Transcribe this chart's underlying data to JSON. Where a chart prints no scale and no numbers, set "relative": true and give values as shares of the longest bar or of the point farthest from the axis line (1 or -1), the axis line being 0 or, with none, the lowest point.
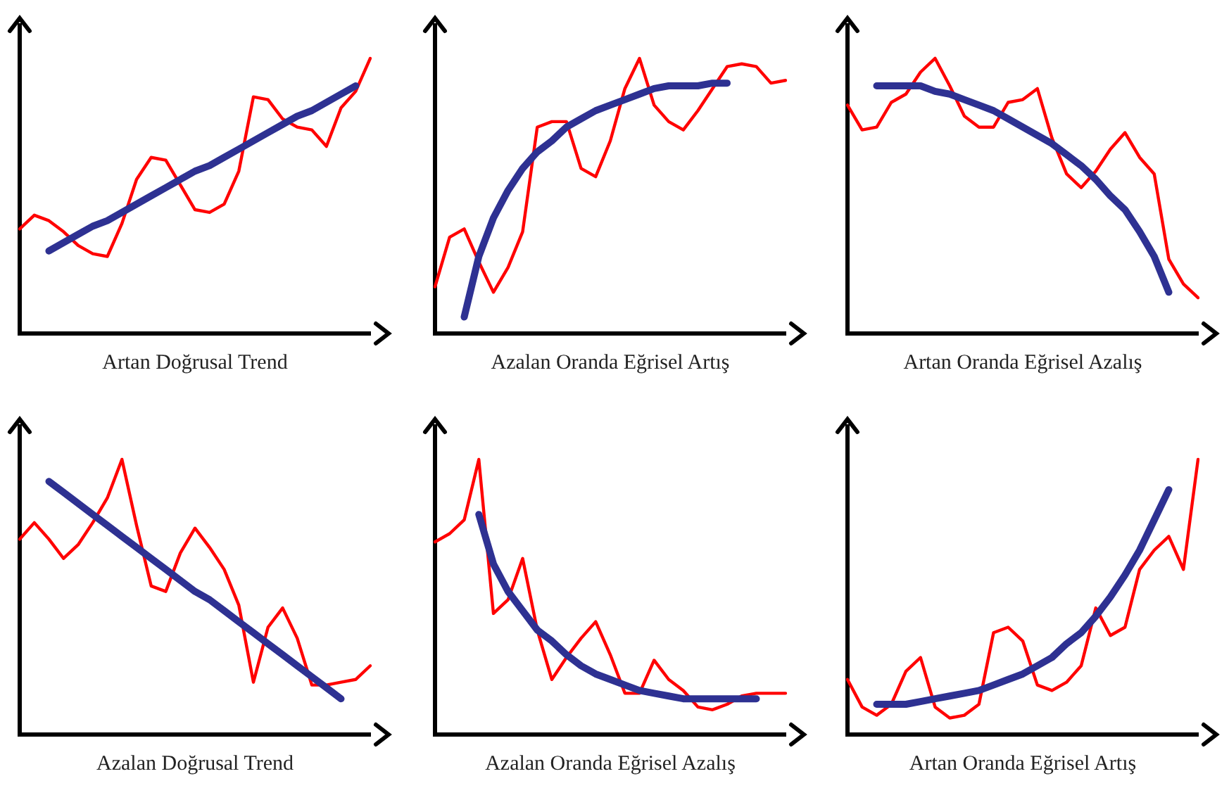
{
  "chart_data": [
    {
      "type": "line",
      "xlabel": "Artan Doğrusal Trend",
      "relative": true,
      "tick_labels": false,
      "grid": false,
      "marker": "none",
      "categories": [
        null,
        null,
        null,
        null,
        null,
        null,
        null,
        null,
        null,
        null,
        null,
        null,
        null,
        null,
        null,
        null,
        null,
        null,
        null,
        null,
        null,
        null,
        null,
        null,
        null
      ],
      "series": [
        {
          "color": "#ff0000",
          "values": [
            0.38,
            0.43,
            0.41,
            0.37,
            0.32,
            0.29,
            0.28,
            0.4,
            0.56,
            0.64,
            0.63,
            0.54,
            0.45,
            0.44,
            0.47,
            0.59,
            0.86,
            0.85,
            0.78,
            0.75,
            0.74,
            0.68,
            0.82,
            0.88,
            1.0
          ]
        },
        {
          "color": "#2e3192",
          "values": [
            null,
            null,
            0.3,
            0.33,
            0.36,
            0.39,
            0.41,
            0.44,
            0.47,
            0.5,
            0.53,
            0.56,
            0.59,
            0.61,
            0.64,
            0.67,
            0.7,
            0.73,
            0.76,
            0.79,
            0.81,
            0.84,
            0.87,
            0.9,
            null
          ]
        }
      ]
    },
    {
      "type": "line",
      "xlabel": "Azalan Oranda Eğrisel Artış",
      "relative": true,
      "tick_labels": false,
      "grid": false,
      "marker": "none",
      "categories": [
        null,
        null,
        null,
        null,
        null,
        null,
        null,
        null,
        null,
        null,
        null,
        null,
        null,
        null,
        null,
        null,
        null,
        null,
        null,
        null,
        null,
        null,
        null,
        null,
        null
      ],
      "series": [
        {
          "color": "#ff0000",
          "values": [
            0.17,
            0.35,
            0.38,
            0.26,
            0.15,
            0.24,
            0.37,
            0.75,
            0.77,
            0.77,
            0.6,
            0.57,
            0.7,
            0.89,
            1.0,
            0.83,
            0.77,
            0.74,
            0.81,
            0.89,
            0.97,
            0.98,
            0.97,
            0.91,
            0.92
          ]
        },
        {
          "color": "#2e3192",
          "values": [
            null,
            null,
            0.06,
            0.28,
            0.42,
            0.52,
            0.6,
            0.66,
            0.7,
            0.75,
            0.78,
            0.81,
            0.83,
            0.85,
            0.87,
            0.89,
            0.9,
            0.9,
            0.9,
            0.91,
            0.91,
            null,
            null,
            null,
            null
          ]
        }
      ]
    },
    {
      "type": "line",
      "xlabel": "Artan Oranda Eğrisel Azalış",
      "relative": true,
      "tick_labels": false,
      "grid": false,
      "marker": "none",
      "categories": [
        null,
        null,
        null,
        null,
        null,
        null,
        null,
        null,
        null,
        null,
        null,
        null,
        null,
        null,
        null,
        null,
        null,
        null,
        null,
        null,
        null,
        null,
        null,
        null,
        null
      ],
      "series": [
        {
          "color": "#ff0000",
          "values": [
            0.83,
            0.74,
            0.75,
            0.84,
            0.87,
            0.95,
            1.0,
            0.9,
            0.79,
            0.75,
            0.75,
            0.84,
            0.85,
            0.89,
            0.71,
            0.58,
            0.53,
            0.59,
            0.67,
            0.73,
            0.64,
            0.58,
            0.27,
            0.18,
            0.13
          ]
        },
        {
          "color": "#2e3192",
          "values": [
            null,
            null,
            0.9,
            0.9,
            0.9,
            0.9,
            0.88,
            0.87,
            0.85,
            0.83,
            0.81,
            0.78,
            0.75,
            0.72,
            0.69,
            0.65,
            0.61,
            0.56,
            0.5,
            0.45,
            0.37,
            0.28,
            0.15,
            null,
            null
          ]
        }
      ]
    },
    {
      "type": "line",
      "xlabel": "Azalan Doğrusal Trend",
      "relative": true,
      "tick_labels": false,
      "grid": false,
      "marker": "none",
      "categories": [
        null,
        null,
        null,
        null,
        null,
        null,
        null,
        null,
        null,
        null,
        null,
        null,
        null,
        null,
        null,
        null,
        null,
        null,
        null,
        null,
        null,
        null,
        null,
        null,
        null
      ],
      "series": [
        {
          "color": "#ff0000",
          "values": [
            0.71,
            0.77,
            0.71,
            0.64,
            0.69,
            0.77,
            0.86,
            1.0,
            0.76,
            0.54,
            0.52,
            0.66,
            0.75,
            0.68,
            0.6,
            0.47,
            0.19,
            0.39,
            0.46,
            0.35,
            0.18,
            0.18,
            0.19,
            0.2,
            0.25
          ]
        },
        {
          "color": "#2e3192",
          "values": [
            null,
            null,
            0.92,
            0.88,
            0.84,
            0.8,
            0.76,
            0.72,
            0.68,
            0.64,
            0.6,
            0.56,
            0.52,
            0.49,
            0.45,
            0.41,
            0.37,
            0.33,
            0.29,
            0.25,
            0.21,
            0.17,
            0.13,
            null,
            null
          ]
        }
      ]
    },
    {
      "type": "line",
      "xlabel": "Azalan Oranda Eğrisel Azalış",
      "relative": true,
      "tick_labels": false,
      "grid": false,
      "marker": "none",
      "categories": [
        null,
        null,
        null,
        null,
        null,
        null,
        null,
        null,
        null,
        null,
        null,
        null,
        null,
        null,
        null,
        null,
        null,
        null,
        null,
        null,
        null,
        null,
        null,
        null,
        null
      ],
      "series": [
        {
          "color": "#ff0000",
          "values": [
            0.7,
            0.73,
            0.78,
            1.0,
            0.44,
            0.49,
            0.64,
            0.38,
            0.2,
            0.28,
            0.35,
            0.41,
            0.29,
            0.15,
            0.15,
            0.27,
            0.2,
            0.16,
            0.1,
            0.09,
            0.11,
            0.14,
            0.15,
            0.15,
            0.15
          ]
        },
        {
          "color": "#2e3192",
          "values": [
            null,
            null,
            null,
            0.8,
            0.62,
            0.52,
            0.45,
            0.38,
            0.34,
            0.29,
            0.25,
            0.22,
            0.2,
            0.18,
            0.16,
            0.15,
            0.14,
            0.13,
            0.13,
            0.13,
            0.13,
            0.13,
            0.13,
            null,
            null
          ]
        }
      ]
    },
    {
      "type": "line",
      "xlabel": "Artan Oranda Eğrisel Artış",
      "relative": true,
      "tick_labels": false,
      "grid": false,
      "marker": "none",
      "categories": [
        null,
        null,
        null,
        null,
        null,
        null,
        null,
        null,
        null,
        null,
        null,
        null,
        null,
        null,
        null,
        null,
        null,
        null,
        null,
        null,
        null,
        null,
        null,
        null,
        null
      ],
      "series": [
        {
          "color": "#ff0000",
          "values": [
            0.2,
            0.1,
            0.07,
            0.11,
            0.23,
            0.28,
            0.1,
            0.06,
            0.07,
            0.11,
            0.37,
            0.39,
            0.34,
            0.18,
            0.16,
            0.19,
            0.25,
            0.46,
            0.36,
            0.39,
            0.6,
            0.67,
            0.72,
            0.6,
            1.0
          ]
        },
        {
          "color": "#2e3192",
          "values": [
            null,
            null,
            0.11,
            0.11,
            0.11,
            0.12,
            0.13,
            0.14,
            0.15,
            0.16,
            0.18,
            0.2,
            0.22,
            0.25,
            0.28,
            0.33,
            0.37,
            0.43,
            0.5,
            0.58,
            0.67,
            0.78,
            0.89,
            null,
            null
          ]
        }
      ]
    }
  ]
}
